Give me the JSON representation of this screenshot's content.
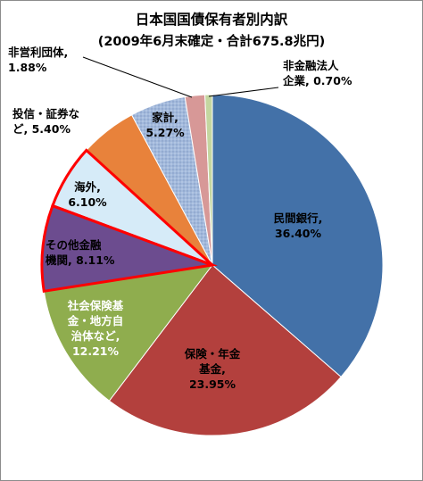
{
  "chart_data": {
    "type": "pie",
    "title": "日本国国債保有者別内訳",
    "subtitle": "(2009年6月末確定・合計675.8兆円)",
    "slices": [
      {
        "label": "民間銀行",
        "value": 36.4,
        "value_text": "36.40%",
        "color": "#4371a8",
        "label_color": "#000000",
        "highlight": false
      },
      {
        "label": "保険・年金基金",
        "value": 23.95,
        "value_text": "23.95%",
        "color": "#b3403d",
        "label_color": "#000000",
        "highlight": false
      },
      {
        "label": "社会保険基金・地方自治体など",
        "value": 12.21,
        "value_text": "12.21%",
        "color": "#8fad4e",
        "label_color": "#ffffff",
        "highlight": false
      },
      {
        "label": "その他金融機関",
        "value": 8.11,
        "value_text": "8.11%",
        "color": "#6c4c8f",
        "label_color": "#000000",
        "highlight": true
      },
      {
        "label": "海外",
        "value": 6.1,
        "value_text": "6.10%",
        "color": "#d6ebf8",
        "label_color": "#000000",
        "highlight": true
      },
      {
        "label": "投信・証券など",
        "value": 5.4,
        "value_text": "5.40%",
        "color": "#e8823b",
        "label_color": "#000000",
        "highlight": false
      },
      {
        "label": "家計",
        "value": 5.27,
        "value_text": "5.27%",
        "color": "#a2b9dc",
        "label_color": "#000000",
        "highlight": false
      },
      {
        "label": "非営利団体",
        "value": 1.88,
        "value_text": "1.88%",
        "color": "#d79897",
        "label_color": "#000000",
        "highlight": false
      },
      {
        "label": "非金融法人企業",
        "value": 0.7,
        "value_text": "0.70%",
        "color": "#c4d6a0",
        "label_color": "#000000",
        "highlight": false
      }
    ],
    "highlight_color": "#ff0000",
    "start_angle": "12 o'clock",
    "direction": "clockwise",
    "legend": "none"
  }
}
